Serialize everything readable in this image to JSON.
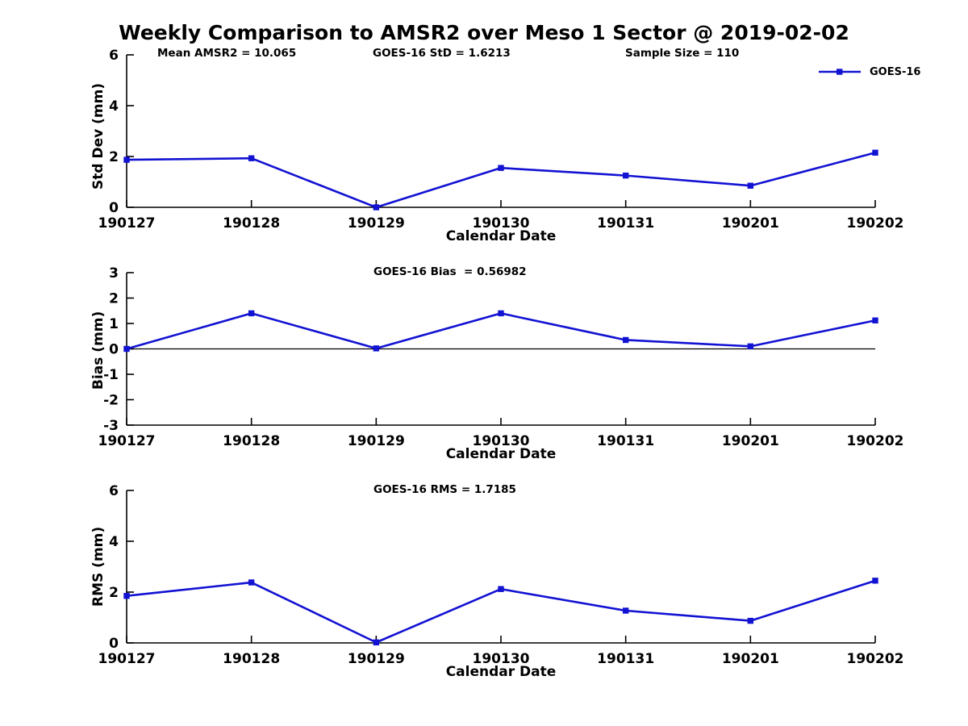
{
  "page_title": "Weekly Comparison to AMSR2 over Meso 1 Sector @ 2019-02-02",
  "colors": {
    "series_blue": "#1212d3",
    "axis_black": "#000000",
    "background": "#ffffff"
  },
  "legend": {
    "label": "GOES-16"
  },
  "chart_data": [
    {
      "type": "line",
      "ylabel": "Std Dev (mm)",
      "xlabel": "Calendar Date",
      "categories": [
        "190127",
        "190128",
        "190129",
        "190130",
        "190131",
        "190201",
        "190202"
      ],
      "series": [
        {
          "name": "GOES-16",
          "color": "#1212d3",
          "marker": "square",
          "values": [
            1.87,
            1.93,
            0.0,
            1.55,
            1.25,
            0.85,
            2.15
          ]
        }
      ],
      "ylim": [
        0,
        6
      ],
      "yticks": [
        0,
        2,
        4,
        6
      ],
      "zero_line": false,
      "grid": false,
      "legend_position": "top-right-outside",
      "annotations": [
        "Mean AMSR2 = 10.065",
        "GOES-16 StD = 1.6213",
        "Sample Size = 110"
      ]
    },
    {
      "type": "line",
      "ylabel": "Bias (mm)",
      "xlabel": "Calendar Date",
      "categories": [
        "190127",
        "190128",
        "190129",
        "190130",
        "190131",
        "190201",
        "190202"
      ],
      "series": [
        {
          "name": "GOES-16",
          "color": "#1212d3",
          "marker": "square",
          "values": [
            0.0,
            1.4,
            0.02,
            1.4,
            0.35,
            0.1,
            1.12
          ]
        }
      ],
      "ylim": [
        -3,
        3
      ],
      "yticks": [
        3,
        2,
        1,
        0,
        -1,
        -2,
        -3
      ],
      "zero_line": true,
      "grid": false,
      "annotations": [
        "GOES-16 Bias  = 0.56982"
      ]
    },
    {
      "type": "line",
      "ylabel": "RMS (mm)",
      "xlabel": "Calendar Date",
      "categories": [
        "190127",
        "190128",
        "190129",
        "190130",
        "190131",
        "190201",
        "190202"
      ],
      "series": [
        {
          "name": "GOES-16",
          "color": "#1212d3",
          "marker": "square",
          "values": [
            1.85,
            2.38,
            0.02,
            2.12,
            1.27,
            0.87,
            2.45
          ]
        }
      ],
      "ylim": [
        0,
        6
      ],
      "yticks": [
        0,
        2,
        4,
        6
      ],
      "zero_line": false,
      "grid": false,
      "annotations": [
        "GOES-16 RMS = 1.7185"
      ]
    }
  ]
}
